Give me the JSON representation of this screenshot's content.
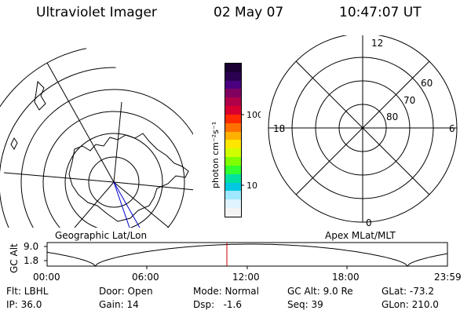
{
  "header": {
    "instrument": "Ultraviolet Imager",
    "date": "02 May 07",
    "time": "10:47:07 UT"
  },
  "colorbar": {
    "unit_label": "photon cm⁻²s⁻¹",
    "tick_100": "100",
    "tick_10": "10",
    "colors": [
      "#1a0033",
      "#2a0050",
      "#4a0080",
      "#800060",
      "#b0004a",
      "#d80030",
      "#ff2a00",
      "#ff7000",
      "#ffb000",
      "#ffe600",
      "#d0ff00",
      "#80ff00",
      "#30ff30",
      "#00e0a0",
      "#00c8e0",
      "#a0e8ff",
      "#e0f4ff",
      "#f4f4f4"
    ]
  },
  "left_map": {
    "caption": "Geographic Lat/Lon",
    "footprint_color": "#0000cc"
  },
  "right_map": {
    "caption": "Apex MLat/MLT",
    "mlt_12": "12",
    "mlt_18": "18",
    "mlt_6": "6",
    "mlt_0": "0",
    "lat_60": "60",
    "lat_70": "70",
    "lat_80": "80"
  },
  "altitude_plot": {
    "ylabel": "GC Alt",
    "y_top": "9.0",
    "y_bottom": "1.8",
    "x_ticks": [
      "00:00",
      "06:00",
      "12:00",
      "18:00",
      "23:59"
    ],
    "current_time_marker_color": "#cc0000"
  },
  "footer": {
    "flt": "Flt: LBHL",
    "ip": "IP: 36.0",
    "door": "Door: Open",
    "gain": "Gain: 14",
    "mode": "Mode: Normal",
    "dsp": "Dsp:   -1.6",
    "gc_alt": "GC Alt: 9.0 Re",
    "seq": "Seq: 39",
    "glat": "GLat: -73.2",
    "glon": "GLon: 210.0"
  }
}
